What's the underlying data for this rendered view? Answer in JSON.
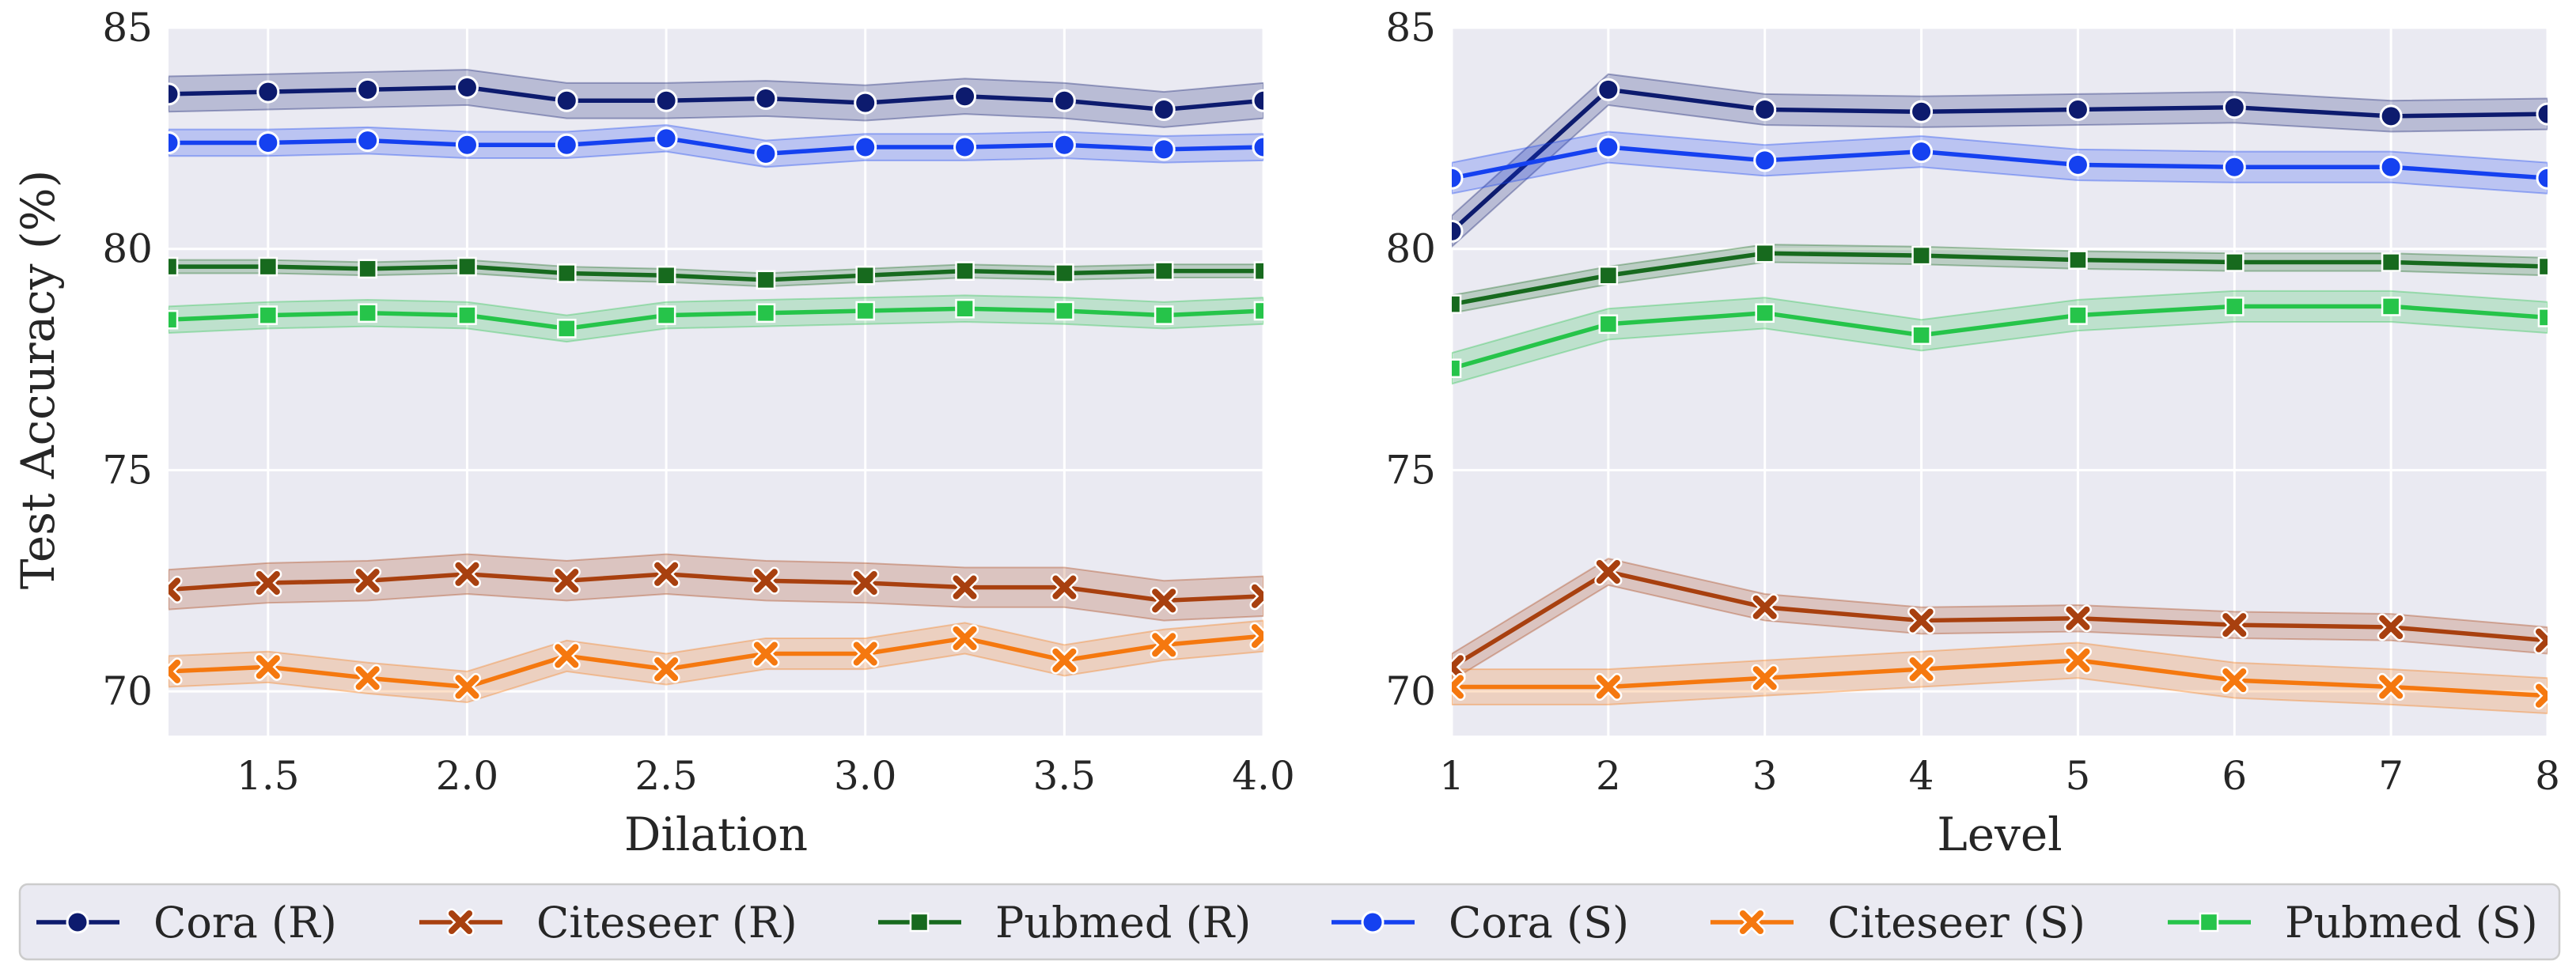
{
  "chart_data": [
    {
      "type": "line",
      "xlabel": "Dilation",
      "ylabel": "Test Accuracy (%)",
      "xlim": [
        1.25,
        4.0
      ],
      "ylim": [
        69,
        85
      ],
      "xticks": [
        "1.5",
        "2.0",
        "2.5",
        "3.0",
        "3.5",
        "4.0"
      ],
      "yticks": [
        "70",
        "75",
        "80",
        "85"
      ],
      "x": [
        1.25,
        1.5,
        1.75,
        2.0,
        2.25,
        2.5,
        2.75,
        3.0,
        3.25,
        3.5,
        3.75,
        4.0
      ],
      "series": [
        {
          "name": "Cora (R)",
          "values": [
            83.5,
            83.55,
            83.6,
            83.65,
            83.35,
            83.35,
            83.4,
            83.3,
            83.45,
            83.35,
            83.15,
            83.35
          ],
          "band": 0.4
        },
        {
          "name": "Cora (S)",
          "values": [
            82.4,
            82.4,
            82.45,
            82.35,
            82.35,
            82.5,
            82.15,
            82.3,
            82.3,
            82.35,
            82.25,
            82.3
          ],
          "band": 0.3
        },
        {
          "name": "Pubmed (R)",
          "values": [
            79.6,
            79.6,
            79.55,
            79.6,
            79.45,
            79.4,
            79.3,
            79.4,
            79.5,
            79.45,
            79.5,
            79.5
          ],
          "band": 0.15
        },
        {
          "name": "Pubmed (S)",
          "values": [
            78.4,
            78.5,
            78.55,
            78.5,
            78.2,
            78.5,
            78.55,
            78.6,
            78.65,
            78.6,
            78.5,
            78.6
          ],
          "band": 0.3
        },
        {
          "name": "Citeseer (R)",
          "values": [
            72.3,
            72.45,
            72.5,
            72.65,
            72.5,
            72.65,
            72.5,
            72.45,
            72.35,
            72.35,
            72.05,
            72.15
          ],
          "band": 0.45
        },
        {
          "name": "Citeseer (S)",
          "values": [
            70.45,
            70.55,
            70.3,
            70.1,
            70.8,
            70.5,
            70.85,
            70.85,
            71.2,
            70.7,
            71.05,
            71.25
          ],
          "band": 0.35
        }
      ]
    },
    {
      "type": "line",
      "xlabel": "Level",
      "ylabel": "",
      "xlim": [
        1,
        8
      ],
      "ylim": [
        69,
        85
      ],
      "xticks": [
        "1",
        "2",
        "3",
        "4",
        "5",
        "6",
        "7",
        "8"
      ],
      "yticks": [
        "70",
        "75",
        "80",
        "85"
      ],
      "x": [
        1,
        2,
        3,
        4,
        5,
        6,
        7,
        8
      ],
      "series": [
        {
          "name": "Cora (R)",
          "values": [
            80.4,
            83.6,
            83.15,
            83.1,
            83.15,
            83.2,
            83.0,
            83.05
          ],
          "band": 0.35
        },
        {
          "name": "Cora (S)",
          "values": [
            81.6,
            82.3,
            82.0,
            82.2,
            81.9,
            81.85,
            81.85,
            81.6
          ],
          "band": 0.35
        },
        {
          "name": "Pubmed (R)",
          "values": [
            78.75,
            79.4,
            79.9,
            79.85,
            79.75,
            79.7,
            79.7,
            79.6
          ],
          "band": 0.2
        },
        {
          "name": "Pubmed (S)",
          "values": [
            77.3,
            78.3,
            78.55,
            78.05,
            78.5,
            78.7,
            78.7,
            78.45
          ],
          "band": 0.35
        },
        {
          "name": "Citeseer (R)",
          "values": [
            70.55,
            72.7,
            71.9,
            71.6,
            71.65,
            71.5,
            71.45,
            71.15
          ],
          "band": 0.3
        },
        {
          "name": "Citeseer (S)",
          "values": [
            70.1,
            70.1,
            70.3,
            70.5,
            70.7,
            70.25,
            70.1,
            69.9
          ],
          "band": 0.4
        }
      ]
    }
  ],
  "legend": [
    {
      "name": "Cora (R)",
      "color": "#0d1b6e",
      "marker": "circle"
    },
    {
      "name": "Citeseer (R)",
      "color": "#a8400f",
      "marker": "x"
    },
    {
      "name": "Pubmed (R)",
      "color": "#176a1e",
      "marker": "square"
    },
    {
      "name": "Cora (S)",
      "color": "#1541f0",
      "marker": "circle"
    },
    {
      "name": "Citeseer (S)",
      "color": "#f5780f",
      "marker": "x"
    },
    {
      "name": "Pubmed (S)",
      "color": "#26c44a",
      "marker": "square"
    }
  ],
  "colors": {
    "Cora (R)": "#0d1b6e",
    "Cora (S)": "#1541f0",
    "Pubmed (R)": "#176a1e",
    "Pubmed (S)": "#26c44a",
    "Citeseer (R)": "#a8400f",
    "Citeseer (S)": "#f5780f",
    "axes_bg": "#eaeaf2",
    "grid": "#ffffff"
  }
}
